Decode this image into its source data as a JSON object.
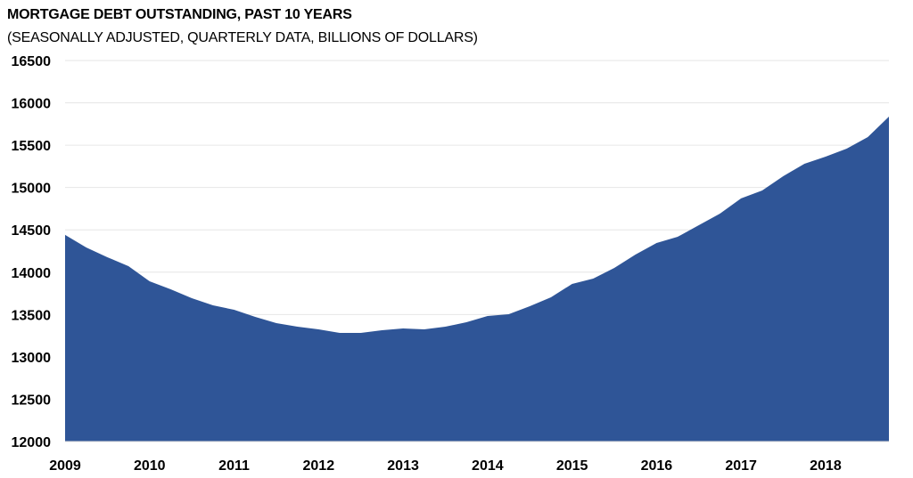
{
  "chart_data": {
    "type": "area",
    "title": "MORTGAGE DEBT OUTSTANDING, PAST 10 YEARS",
    "subtitle": "(SEASONALLY ADJUSTED, QUARTERLY DATA,  BILLIONS OF DOLLARS)",
    "xlabel": "",
    "ylabel": "",
    "ylim": [
      12000,
      16500
    ],
    "xlim": [
      2009,
      2018.75
    ],
    "grid": true,
    "yticks": [
      12000,
      12500,
      13000,
      13500,
      14000,
      14500,
      15000,
      15500,
      16000,
      16500
    ],
    "xticks": [
      "2009",
      "2010",
      "2011",
      "2012",
      "2013",
      "2014",
      "2015",
      "2016",
      "2017",
      "2018"
    ],
    "color": "#2F5597",
    "x": [
      2009,
      2009.25,
      2009.5,
      2009.75,
      2010,
      2010.25,
      2010.5,
      2010.75,
      2011,
      2011.25,
      2011.5,
      2011.75,
      2012,
      2012.25,
      2012.5,
      2012.75,
      2013,
      2013.25,
      2013.5,
      2013.75,
      2014,
      2014.25,
      2014.5,
      2014.75,
      2015,
      2015.25,
      2015.5,
      2015.75,
      2016,
      2016.25,
      2016.5,
      2016.75,
      2017,
      2017.25,
      2017.5,
      2017.75,
      2018,
      2018.25,
      2018.5,
      2018.75
    ],
    "values": [
      14440,
      14292,
      14177,
      14071,
      13893,
      13798,
      13693,
      13609,
      13556,
      13472,
      13398,
      13356,
      13325,
      13283,
      13283,
      13314,
      13335,
      13325,
      13356,
      13409,
      13483,
      13504,
      13598,
      13703,
      13861,
      13924,
      14050,
      14208,
      14345,
      14418,
      14555,
      14692,
      14871,
      14965,
      15134,
      15281,
      15365,
      15459,
      15596,
      15838
    ]
  }
}
